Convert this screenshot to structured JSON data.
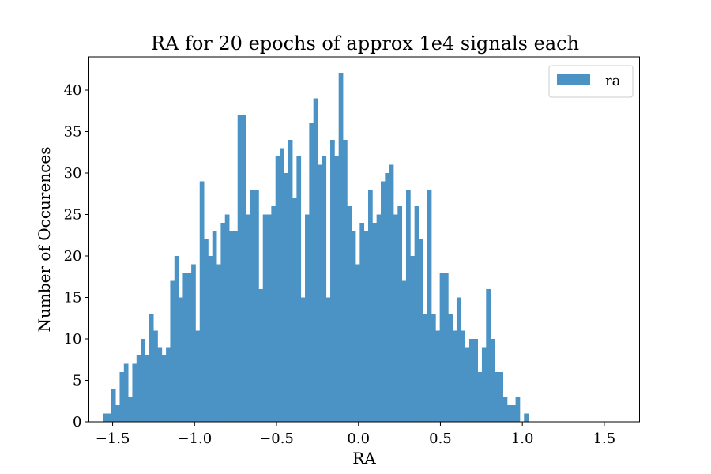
{
  "chart_data": {
    "type": "bar",
    "title": "RA for 20 epochs of approx 1e4 signals each",
    "xlabel": "RA",
    "ylabel": "Number of Occurences",
    "xlim": [
      -1.645,
      1.715
    ],
    "ylim": [
      0,
      44
    ],
    "xticks": [
      -1.5,
      -1.0,
      -0.5,
      0.0,
      0.5,
      1.0,
      1.5
    ],
    "xtick_labels": [
      "−1.5",
      "−1.0",
      "−0.5",
      "0.0",
      "0.5",
      "1.0",
      "1.5"
    ],
    "yticks": [
      0,
      5,
      10,
      15,
      20,
      25,
      30,
      35,
      40
    ],
    "ytick_labels": [
      "0",
      "5",
      "10",
      "15",
      "20",
      "25",
      "30",
      "35",
      "40"
    ],
    "grid": false,
    "legend": {
      "position": "top-right",
      "entries": [
        "ra"
      ]
    },
    "bar_color": "#4c93c5",
    "bins_start": -1.56,
    "bin_width": 0.0257,
    "series": [
      {
        "name": "ra",
        "values": [
          1,
          1,
          4,
          2,
          6,
          7,
          3,
          7,
          8,
          10,
          8,
          13,
          11,
          9,
          8,
          9,
          17,
          20,
          15,
          18,
          18,
          19,
          11,
          29,
          22,
          20,
          23,
          19,
          24,
          25,
          23,
          23,
          37,
          37,
          25,
          28,
          28,
          16,
          25,
          25,
          26,
          32,
          33,
          30,
          34,
          27,
          32,
          15,
          25,
          36,
          39,
          31,
          32,
          15,
          34,
          32,
          42,
          34,
          26,
          23,
          19,
          24,
          23,
          28,
          24,
          25,
          29,
          30,
          31,
          25,
          26,
          17,
          28,
          20,
          26,
          22,
          13,
          28,
          13,
          11,
          18,
          18,
          13,
          11,
          15,
          11,
          9,
          10,
          10,
          6,
          9,
          16,
          10,
          6,
          6,
          3,
          2,
          2,
          3,
          0,
          1
        ]
      }
    ]
  }
}
